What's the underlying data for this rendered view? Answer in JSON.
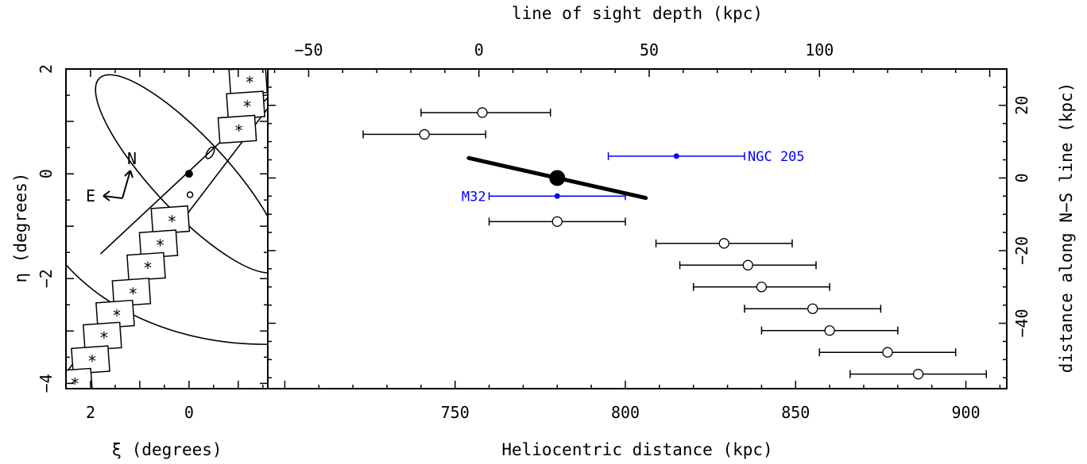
{
  "chart_data": [
    {
      "type": "scatter",
      "panel": "left",
      "xlabel": "ξ (degrees)",
      "ylabel": "η (degrees)",
      "xlim": [
        2.5,
        -1.6
      ],
      "ylim": [
        -4.1,
        2.0
      ],
      "x_ticks": [
        2,
        0
      ],
      "y_ticks": [
        2,
        0,
        -2,
        -4
      ],
      "x_tick_labels": [
        "2",
        "0"
      ],
      "y_tick_labels": [
        "2",
        "0",
        "−2",
        "−4"
      ],
      "compass": {
        "north": "N",
        "east": "E"
      },
      "fields": [
        {
          "xi": -1.2,
          "eta": 1.77
        },
        {
          "xi": -1.15,
          "eta": 1.31
        },
        {
          "xi": -0.98,
          "eta": 0.85
        },
        {
          "xi": 0.38,
          "eta": -0.88
        },
        {
          "xi": 0.62,
          "eta": -1.34
        },
        {
          "xi": 0.87,
          "eta": -1.77
        },
        {
          "xi": 1.17,
          "eta": -2.26
        },
        {
          "xi": 1.5,
          "eta": -2.68
        },
        {
          "xi": 1.76,
          "eta": -3.1
        },
        {
          "xi": 2.0,
          "eta": -3.55
        },
        {
          "xi": 2.35,
          "eta": -3.98
        }
      ]
    },
    {
      "type": "scatter",
      "panel": "right",
      "xlabel": "Heliocentric distance (kpc)",
      "x2label": "line of sight depth (kpc)",
      "ylabel": "distance along N−S line (kpc)",
      "xlim": [
        695,
        912
      ],
      "x2lim": [
        -62,
        155
      ],
      "ylim": [
        -58,
        30
      ],
      "x_ticks": [
        750,
        800,
        850,
        900
      ],
      "x2_ticks": [
        -50,
        0,
        50,
        100
      ],
      "y_ticks": [
        20,
        0,
        -20,
        -40
      ],
      "x_tick_labels": [
        "750",
        "800",
        "850",
        "900"
      ],
      "x2_tick_labels": [
        "−50",
        "0",
        "50",
        "100"
      ],
      "y_tick_labels": [
        "20",
        "0",
        "−20",
        "−40"
      ],
      "fields_distance": [
        {
          "x": 758,
          "y": 18,
          "xerr": [
            740,
            778
          ]
        },
        {
          "x": 741,
          "y": 12,
          "xerr": [
            723,
            759
          ]
        },
        {
          "x": 780,
          "y": -12,
          "xerr": [
            760,
            800
          ]
        },
        {
          "x": 829,
          "y": -18,
          "xerr": [
            809,
            849
          ]
        },
        {
          "x": 836,
          "y": -24,
          "xerr": [
            816,
            856
          ]
        },
        {
          "x": 840,
          "y": -30,
          "xerr": [
            820,
            860
          ]
        },
        {
          "x": 855,
          "y": -36,
          "xerr": [
            835,
            875
          ]
        },
        {
          "x": 860,
          "y": -42,
          "xerr": [
            840,
            880
          ]
        },
        {
          "x": 877,
          "y": -48,
          "xerr": [
            857,
            897
          ]
        },
        {
          "x": 886,
          "y": -54,
          "xerr": [
            866,
            906
          ]
        }
      ],
      "satellites": [
        {
          "name": "NGC 205",
          "x": 815,
          "y": 6,
          "xerr": [
            795,
            835
          ],
          "color": "#0000ff"
        },
        {
          "name": "M32",
          "x": 780,
          "y": -5,
          "xerr": [
            760,
            800
          ],
          "color": "#0000ff"
        }
      ],
      "center": {
        "x": 780,
        "y": 0
      },
      "axis_line": [
        {
          "x": 754,
          "y": 5.5
        },
        {
          "x": 806,
          "y": -5.5
        }
      ]
    }
  ]
}
